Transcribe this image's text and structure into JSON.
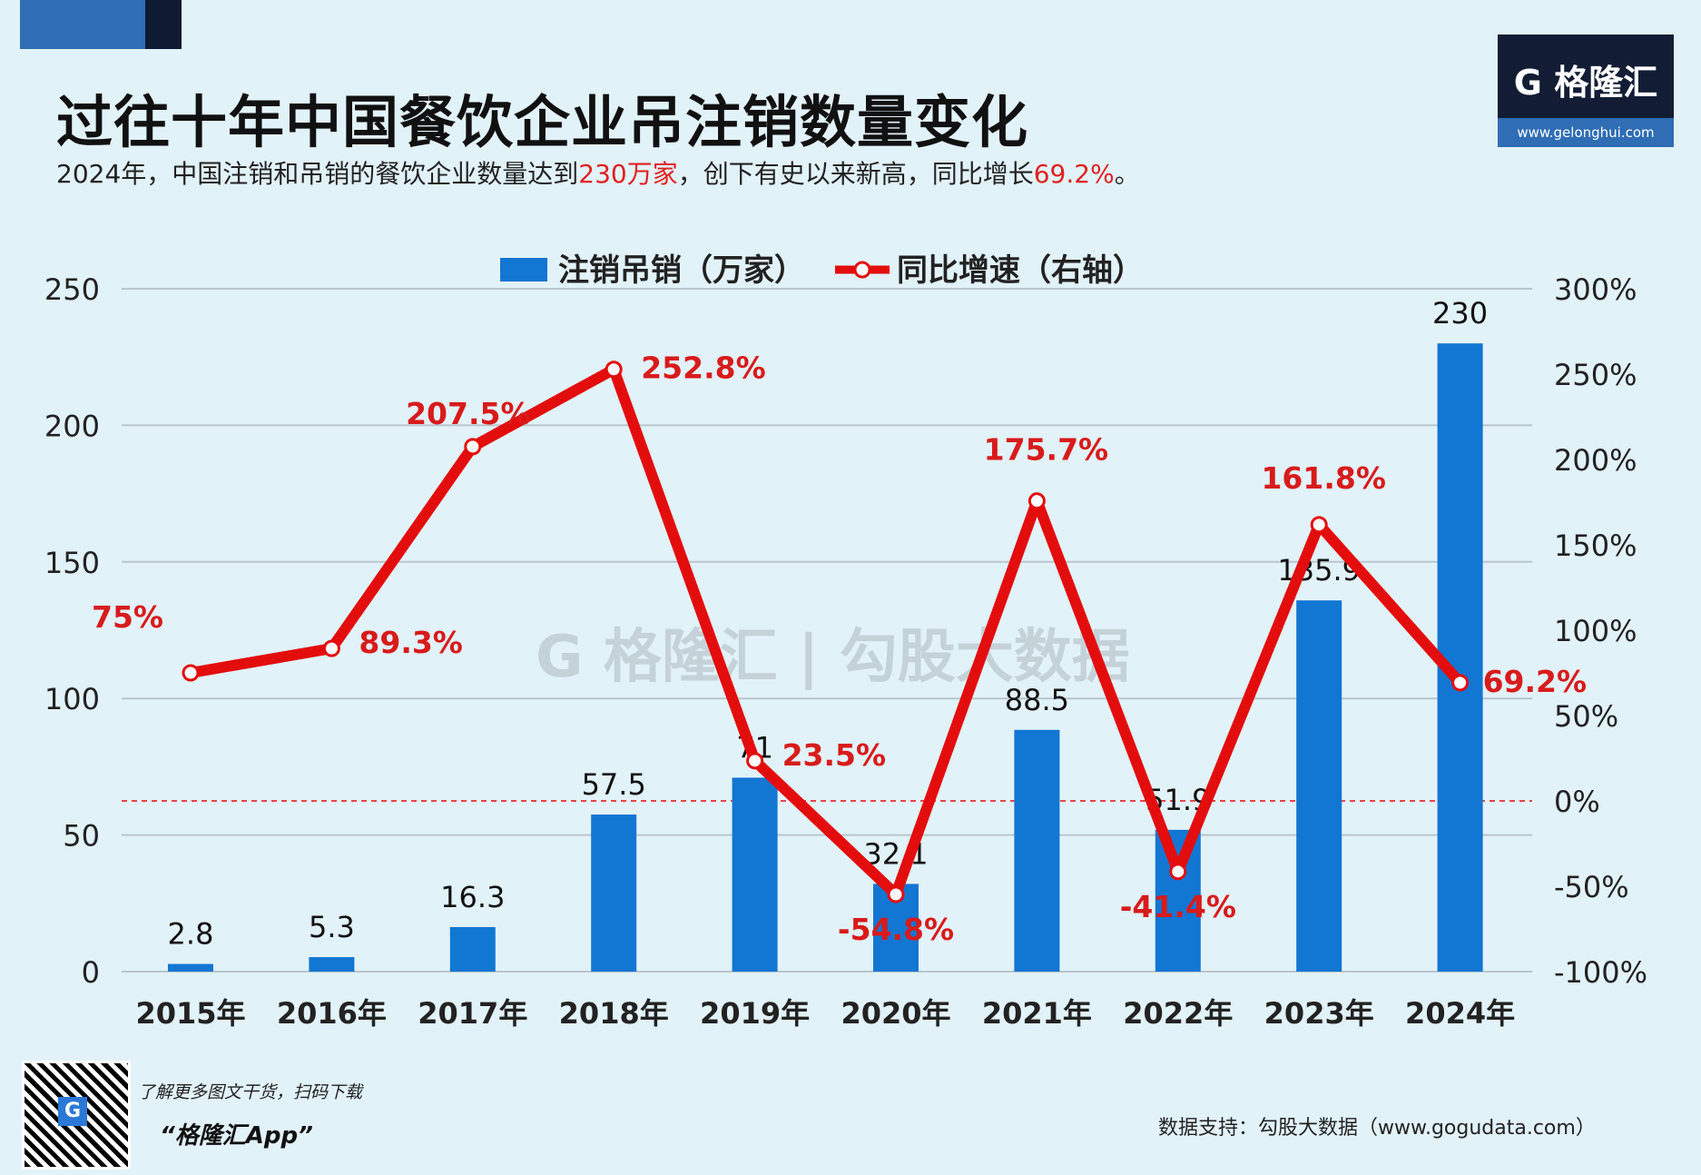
{
  "header": {
    "title": "过往十年中国餐饮企业吊注销数量变化",
    "subtitle_parts": [
      "2024年，中国注销和吊销的餐饮企业数量达到",
      "230万家",
      "，创下有史以来新高，同比增长",
      "69.2%",
      "。"
    ],
    "logo_name": "G 格隆汇",
    "logo_url": "www.gelonghui.com"
  },
  "footer": {
    "qr_caption": "了解更多图文干货，扫码下载",
    "app_name": "“格隆汇App”",
    "source": "数据支持：勾股大数据（www.gogudata.com）"
  },
  "colors": {
    "bar": "#1276d3",
    "line": "#e30d0d",
    "label_red": "#d81b1b",
    "background": "#e2f2f9"
  },
  "chart_data": {
    "type": "bar+line",
    "categories": [
      "2015年",
      "2016年",
      "2017年",
      "2018年",
      "2019年",
      "2020年",
      "2021年",
      "2022年",
      "2023年",
      "2024年"
    ],
    "series": [
      {
        "name": "注销吊销（万家）",
        "type": "bar",
        "axis": "left",
        "values": [
          2.8,
          5.3,
          16.3,
          57.5,
          71,
          32.1,
          88.5,
          51.9,
          135.9,
          230
        ],
        "labels": [
          "2.8",
          "5.3",
          "16.3",
          "57.5",
          "71",
          "32.1",
          "88.5",
          "51.9",
          "135.9",
          "230"
        ]
      },
      {
        "name": "同比增速（右轴）",
        "type": "line",
        "axis": "right",
        "values": [
          75,
          89.3,
          207.5,
          252.8,
          23.5,
          -54.8,
          175.7,
          -41.4,
          161.8,
          69.2
        ],
        "labels": [
          "75%",
          "89.3%",
          "207.5%",
          "252.8%",
          "23.5%",
          "-54.8%",
          "175.7%",
          "-41.4%",
          "161.8%",
          "69.2%"
        ]
      }
    ],
    "y_left": {
      "range": [
        0,
        250
      ],
      "ticks": [
        "0",
        "50",
        "100",
        "150",
        "200",
        "250"
      ]
    },
    "y_right": {
      "range": [
        -100,
        300
      ],
      "ticks": [
        "-100%",
        "-50%",
        "0%",
        "50%",
        "100%",
        "150%",
        "200%",
        "250%",
        "300%"
      ]
    },
    "grid": true,
    "zero_line_right": "dashed red",
    "legend": "top-center"
  }
}
